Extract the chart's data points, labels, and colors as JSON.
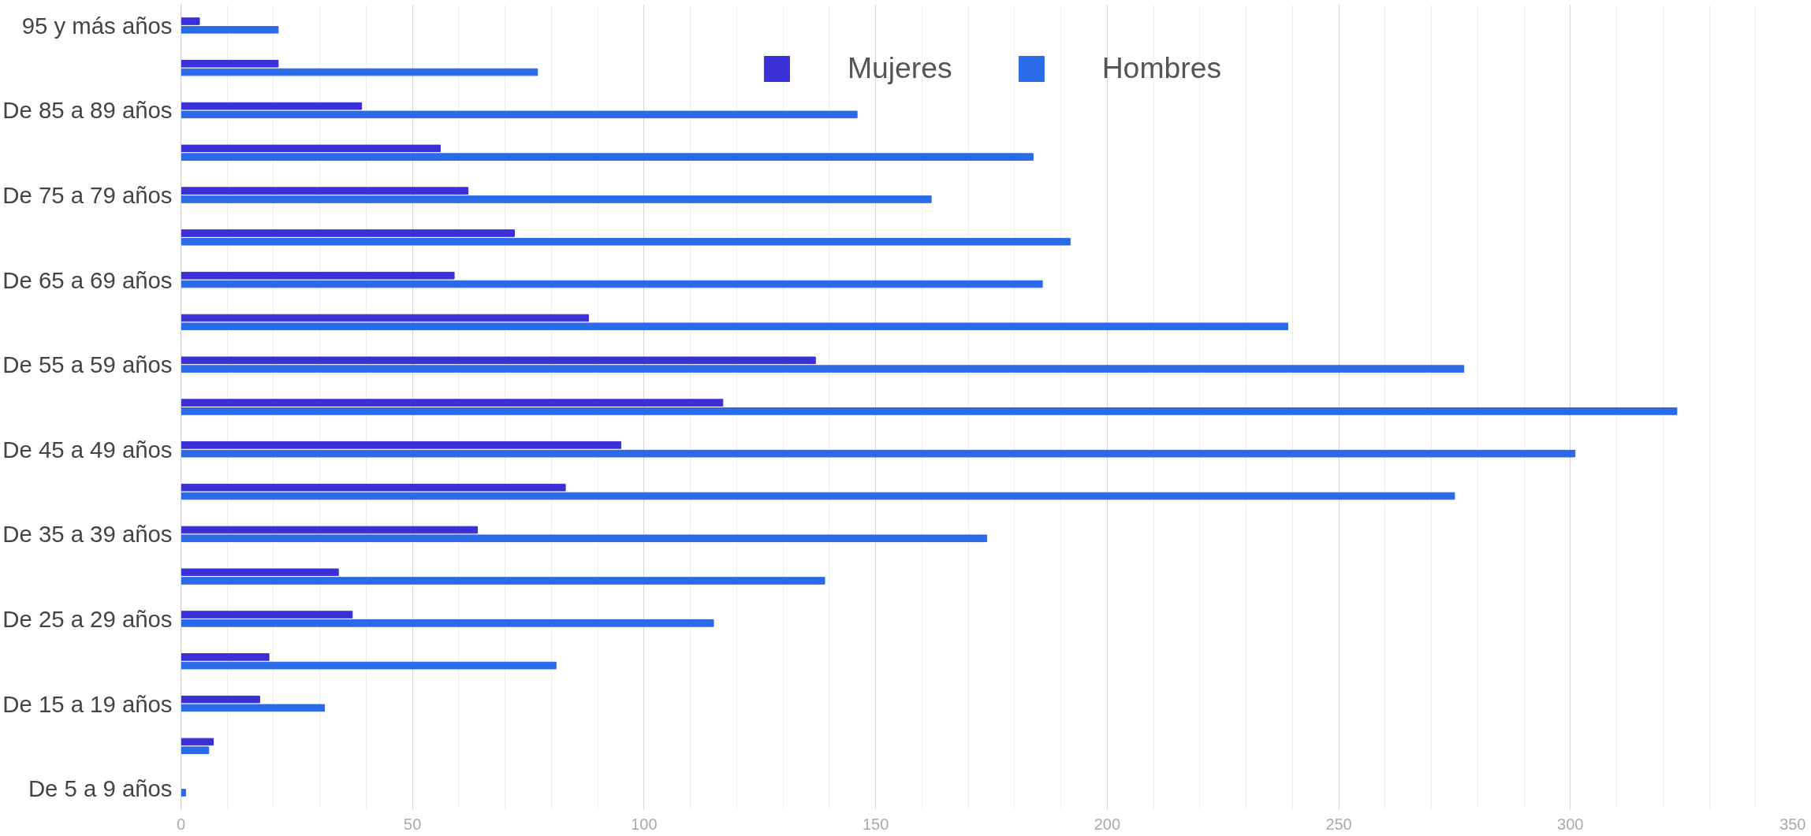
{
  "chart_data": {
    "type": "bar",
    "orientation": "horizontal",
    "categories": [
      "95 y más años",
      null,
      "De 85 a 89 años",
      null,
      "De 75 a 79 años",
      null,
      "De 65 a 69 años",
      null,
      "De 55 a 59 años",
      null,
      "De 45 a 49 años",
      null,
      "De 35 a 39 años",
      null,
      "De 25 a 29 años",
      null,
      "De 15 a 19 años",
      null,
      "De 5 a 9 años"
    ],
    "series": [
      {
        "name": "Mujeres",
        "color": "#3b2fd6",
        "values": [
          4,
          21,
          39,
          56,
          62,
          72,
          59,
          88,
          137,
          117,
          95,
          83,
          64,
          34,
          37,
          19,
          17,
          7,
          0
        ]
      },
      {
        "name": "Hombres",
        "color": "#2a6ae8",
        "values": [
          21,
          77,
          146,
          184,
          162,
          192,
          186,
          239,
          277,
          323,
          301,
          275,
          174,
          139,
          115,
          81,
          31,
          6,
          1
        ]
      }
    ],
    "xlim": [
      0,
      350
    ],
    "xticks": [
      0,
      50,
      100,
      150,
      200,
      250,
      300,
      350
    ],
    "grid": "x",
    "legend": "top"
  }
}
